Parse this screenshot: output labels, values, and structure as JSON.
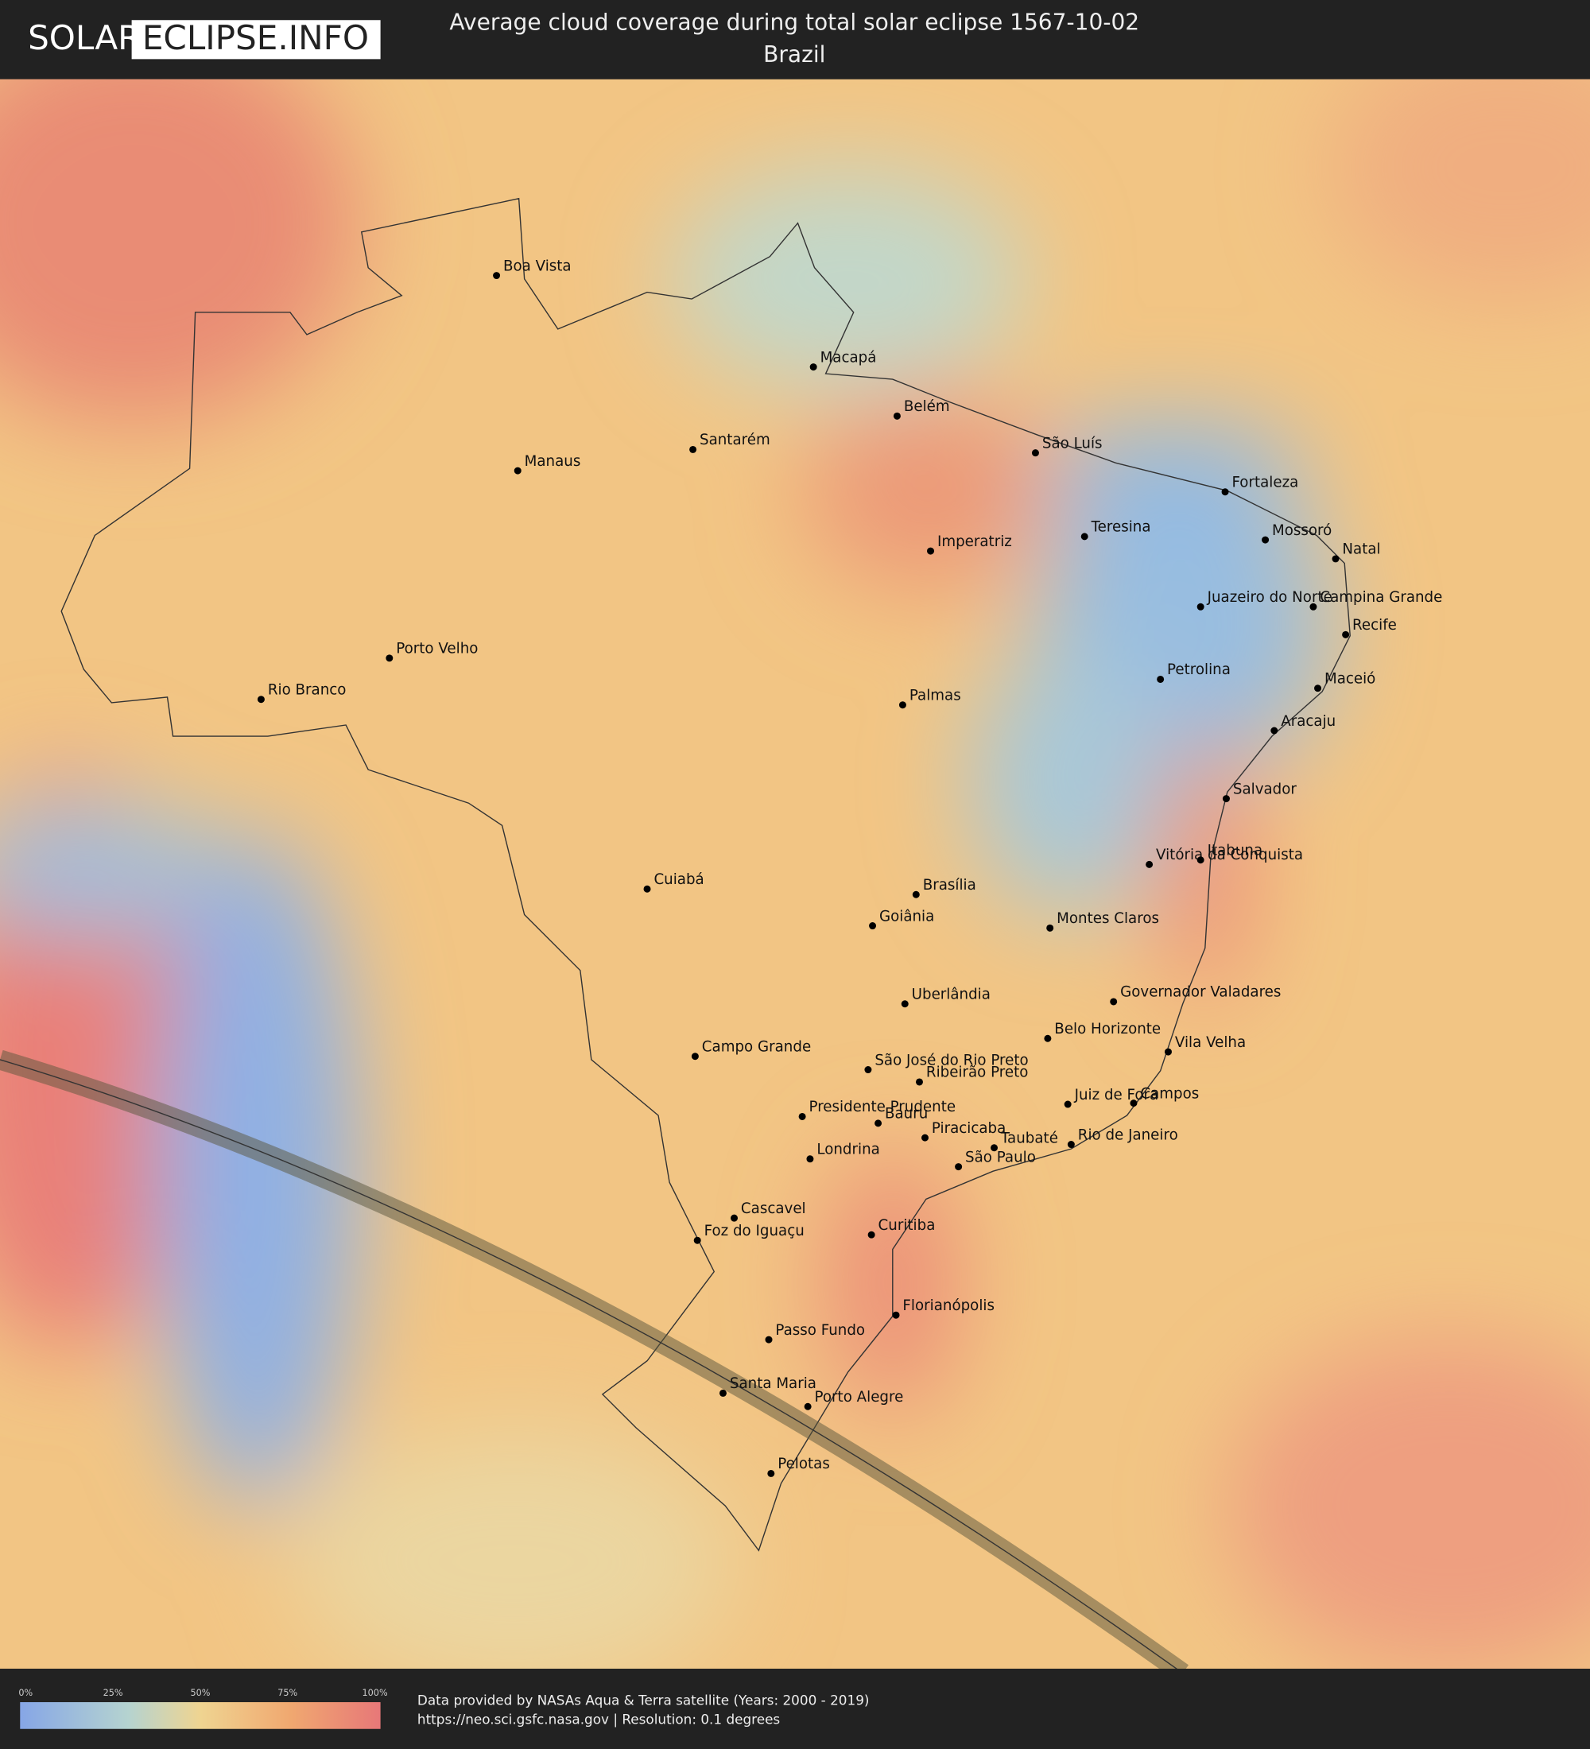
{
  "header": {
    "logo": [
      "SOLAR",
      "ECLIPSE.INFO"
    ],
    "title": "Average cloud coverage during total solar eclipse 1567-10-02",
    "subtitle": "Brazil"
  },
  "map": {
    "cities": [
      "Boa Vista",
      "Macapá",
      "Belém",
      "Santarém",
      "Manaus",
      "São Luís",
      "Fortaleza",
      "Teresina",
      "Mossoró",
      "Natal",
      "Imperatriz",
      "Juazeiro do Norte",
      "Campina Grande",
      "Recife",
      "Porto Velho",
      "Petrolina",
      "Maceió",
      "Rio Branco",
      "Palmas",
      "Aracaju",
      "Salvador",
      "Vitória da Conquista",
      "Itabuna",
      "Cuiabá",
      "Brasília",
      "Goiânia",
      "Montes Claros",
      "Uberlândia",
      "Governador Valadares",
      "Belo Horizonte",
      "Vila Velha",
      "Campo Grande",
      "São José do Rio Preto",
      "Ribeirão Preto",
      "Juiz de Fora",
      "Campos",
      "Presidente Prudente",
      "Bauru",
      "Piracicaba",
      "Taubaté",
      "Rio de Janeiro",
      "Londrina",
      "São Paulo",
      "Cascavel",
      "Foz do Iguaçu",
      "Curitiba",
      "Florianópolis",
      "Passo Fundo",
      "Santa Maria",
      "Porto Alegre",
      "Pelotas"
    ]
  },
  "legend": {
    "ticks": [
      "0%",
      "25%",
      "50%",
      "75%",
      "100%"
    ]
  },
  "footer": {
    "credit": "Data provided by NASAs Aqua & Terra satellite (Years: 2000 - 2019)",
    "source": "https://neo.sci.gsfc.nasa.gov | Resolution: 0.1 degrees"
  }
}
